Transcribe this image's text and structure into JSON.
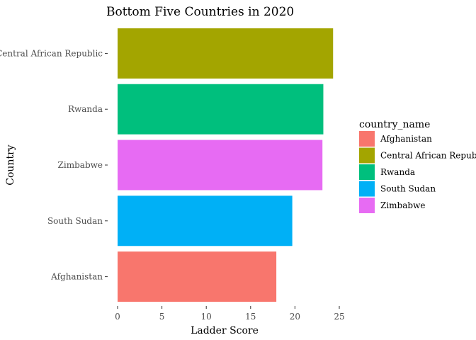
{
  "chart_data": {
    "type": "bar",
    "orientation": "horizontal",
    "title": "Bottom Five Countries in 2020",
    "xlabel": "Ladder Score",
    "ylabel": "Country",
    "categories": [
      "Afghanistan",
      "South Sudan",
      "Zimbabwe",
      "Rwanda",
      "Central African Republic"
    ],
    "values": [
      17.9,
      19.7,
      23.1,
      23.2,
      24.3
    ],
    "colors": [
      "#F8766D",
      "#00B0F6",
      "#E76BF3",
      "#00BF7D",
      "#A3A500"
    ],
    "xlim": [
      0,
      25
    ],
    "xticks": [
      0,
      5,
      10,
      15,
      20,
      25
    ],
    "grid": false,
    "legend": {
      "title": "country_name",
      "position": "right",
      "entries": [
        {
          "label": "Afghanistan",
          "color": "#F8766D"
        },
        {
          "label": "Central African Republic",
          "color": "#A3A500"
        },
        {
          "label": "Rwanda",
          "color": "#00BF7D"
        },
        {
          "label": "South Sudan",
          "color": "#00B0F6"
        },
        {
          "label": "Zimbabwe",
          "color": "#E76BF3"
        }
      ]
    }
  }
}
